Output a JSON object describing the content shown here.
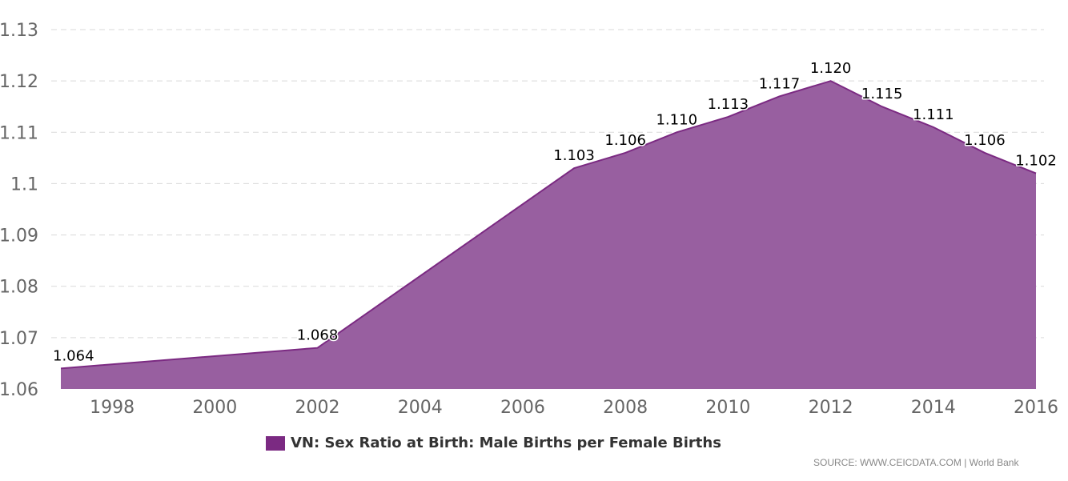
{
  "chart_data": {
    "type": "area",
    "title": "",
    "xlabel": "",
    "ylabel": "",
    "x": [
      1997,
      2002,
      2007,
      2008,
      2009,
      2010,
      2011,
      2012,
      2013,
      2014,
      2015,
      2016
    ],
    "series": [
      {
        "name": "VN: Sex Ratio at Birth: Male Births per Female Births",
        "values": [
          1.064,
          1.068,
          1.103,
          1.106,
          1.11,
          1.113,
          1.117,
          1.12,
          1.115,
          1.111,
          1.106,
          1.102
        ],
        "labels": [
          "1.064",
          "1.068",
          "1.103",
          "1.106",
          "1.110",
          "1.113",
          "1.117",
          "1.120",
          "1.115",
          "1.111",
          "1.106",
          "1.102"
        ]
      }
    ],
    "xlim": [
      1997,
      2016
    ],
    "ylim": [
      1.06,
      1.13
    ],
    "x_ticks": [
      1998,
      2000,
      2002,
      2004,
      2006,
      2008,
      2010,
      2012,
      2014,
      2016
    ],
    "x_tick_labels": [
      "1998",
      "2000",
      "2002",
      "2004",
      "2006",
      "2008",
      "2010",
      "2012",
      "2014",
      "2016"
    ],
    "y_ticks": [
      1.06,
      1.07,
      1.08,
      1.09,
      1.1,
      1.11,
      1.12,
      1.13
    ],
    "y_tick_labels": [
      "1.06",
      "1.07",
      "1.08",
      "1.09",
      "1.1",
      "1.11",
      "1.12",
      "1.13"
    ],
    "grid": true,
    "legend_position": "bottom"
  },
  "colors": {
    "line": "#7b2a82",
    "fill": "#985fa0",
    "grid": "#d9d9d9",
    "legend_swatch": "#7b2a82"
  },
  "legend": {
    "label": "VN: Sex Ratio at Birth: Male Births per Female Births"
  },
  "source": {
    "text": "SOURCE: WWW.CEICDATA.COM | World Bank"
  }
}
